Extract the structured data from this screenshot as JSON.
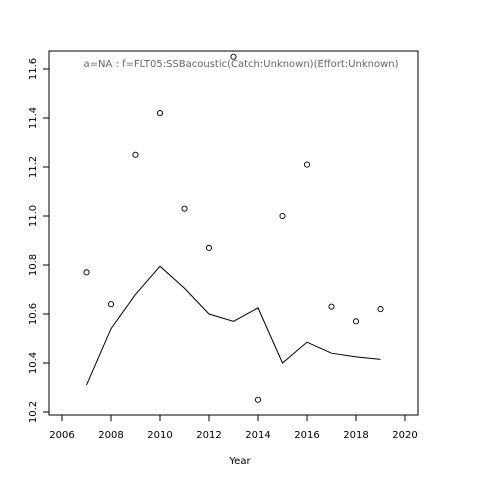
{
  "chart_data": {
    "type": "scatter",
    "title": "a=NA  :  f=FLT05:SSBacoustic(Catch:Unknown)(Effort:Unknown)",
    "xlabel": "Year",
    "ylabel": "",
    "xlim": [
      2005.5,
      2020.5
    ],
    "ylim": [
      10.2,
      11.7
    ],
    "x_ticks": [
      2006,
      2008,
      2010,
      2012,
      2014,
      2016,
      2018,
      2020
    ],
    "y_ticks": [
      10.2,
      10.4,
      10.6,
      10.8,
      11.0,
      11.2,
      11.4,
      11.6
    ],
    "x_tick_labels": [
      "2006",
      "2008",
      "2010",
      "2012",
      "2014",
      "2016",
      "2018",
      "2020"
    ],
    "y_tick_labels": [
      "10.2",
      "10.4",
      "10.6",
      "10.8",
      "11.0",
      "11.2",
      "11.4",
      "11.6"
    ],
    "grid": false,
    "series": [
      {
        "kind": "points",
        "marker": "open-circle",
        "x": [
          2007,
          2008,
          2009,
          2010,
          2011,
          2012,
          2013,
          2014,
          2015,
          2016,
          2017,
          2018,
          2019
        ],
        "y": [
          10.77,
          10.64,
          11.25,
          11.42,
          11.03,
          10.87,
          11.65,
          10.25,
          11.0,
          11.21,
          10.63,
          10.57,
          10.62
        ]
      },
      {
        "kind": "line",
        "x": [
          2007,
          2008,
          2009,
          2010,
          2011,
          2012,
          2013,
          2014,
          2015,
          2016,
          2017,
          2018,
          2019
        ],
        "y": [
          10.31,
          10.54,
          10.68,
          10.795,
          10.705,
          10.6,
          10.57,
          10.625,
          10.4,
          10.485,
          10.44,
          10.425,
          10.415
        ]
      }
    ]
  }
}
